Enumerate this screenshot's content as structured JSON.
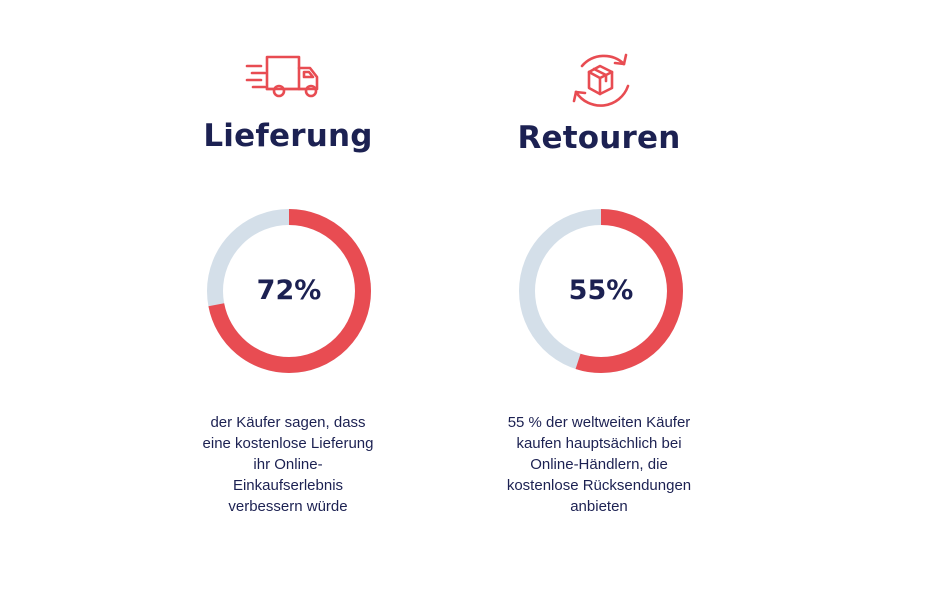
{
  "colors": {
    "accent": "#e84c52",
    "track": "#d4dfe9",
    "text": "#1c2152"
  },
  "chart_data": [
    {
      "type": "pie",
      "variant": "donut",
      "title": "Lieferung",
      "icon": "delivery-truck-icon",
      "value": 72,
      "label": "72%",
      "ylim": [
        0,
        100
      ],
      "caption_lines": [
        "der Käufer sagen, dass",
        "eine kostenlose Lieferung",
        "ihr Online-",
        "Einkaufserlebnis",
        "verbessern würde"
      ]
    },
    {
      "type": "pie",
      "variant": "donut",
      "title": "Retouren",
      "icon": "return-box-icon",
      "value": 55,
      "label": "55%",
      "ylim": [
        0,
        100
      ],
      "caption_lines": [
        "55 % der weltweiten Käufer",
        "kaufen hauptsächlich bei",
        "Online-Händlern, die",
        "kostenlose Rücksendungen",
        "anbieten"
      ]
    }
  ]
}
